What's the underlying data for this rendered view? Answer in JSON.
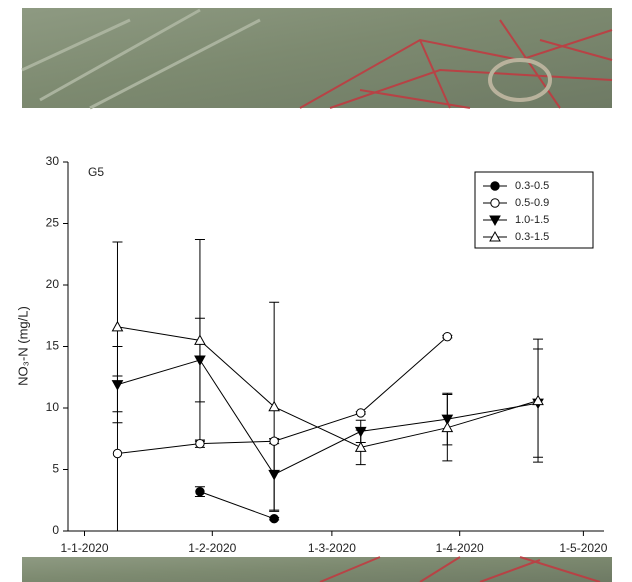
{
  "chart_data": {
    "type": "line",
    "annotation": "G5",
    "ylabel": "NO₃-N (mg/L)",
    "xlim": [
      "2019-12-28",
      "2020-05-06"
    ],
    "xticks": [
      {
        "value": "2020-01-01",
        "label": "1-1-2020"
      },
      {
        "value": "2020-02-01",
        "label": "1-2-2020"
      },
      {
        "value": "2020-03-01",
        "label": "1-3-2020"
      },
      {
        "value": "2020-04-01",
        "label": "1-4-2020"
      },
      {
        "value": "2020-05-01",
        "label": "1-5-2020"
      }
    ],
    "ylim": [
      0,
      30
    ],
    "yticks": [
      0,
      5,
      10,
      15,
      20,
      25,
      30
    ],
    "legend": "upper right",
    "series": [
      {
        "name": "0.3-0.5",
        "color": "#000000",
        "marker": "circle",
        "filled": true,
        "x": [
          "2020-01-29",
          "2020-02-16"
        ],
        "values": [
          3.2,
          1.0
        ],
        "errors": [
          0.4,
          0.1
        ]
      },
      {
        "name": "0.5-0.9",
        "color": "#000000",
        "marker": "circle",
        "filled": false,
        "x": [
          "2020-01-09",
          "2020-01-29",
          "2020-02-16",
          "2020-03-08",
          "2020-03-29"
        ],
        "values": [
          6.3,
          7.1,
          7.3,
          9.6,
          15.8
        ],
        "errors": [
          6.3,
          0.3,
          0.2,
          0.1,
          0.1
        ]
      },
      {
        "name": "1.0-1.5",
        "color": "#000000",
        "marker": "triangle-down",
        "filled": true,
        "x": [
          "2020-01-09",
          "2020-01-29",
          "2020-02-16",
          "2020-03-08",
          "2020-03-29",
          "2020-04-20"
        ],
        "values": [
          11.9,
          13.9,
          4.6,
          8.1,
          9.1,
          10.4
        ],
        "errors": [
          3.1,
          3.4,
          2.9,
          0.9,
          2.1,
          4.4
        ]
      },
      {
        "name": "0.3-1.5",
        "color": "#000000",
        "marker": "triangle-up",
        "filled": false,
        "x": [
          "2020-01-09",
          "2020-01-29",
          "2020-02-16",
          "2020-03-08",
          "2020-03-29",
          "2020-04-20"
        ],
        "values": [
          16.6,
          15.5,
          10.1,
          6.8,
          8.4,
          10.6
        ],
        "errors": [
          6.9,
          8.2,
          8.5,
          1.4,
          2.7,
          5.0
        ]
      }
    ]
  }
}
